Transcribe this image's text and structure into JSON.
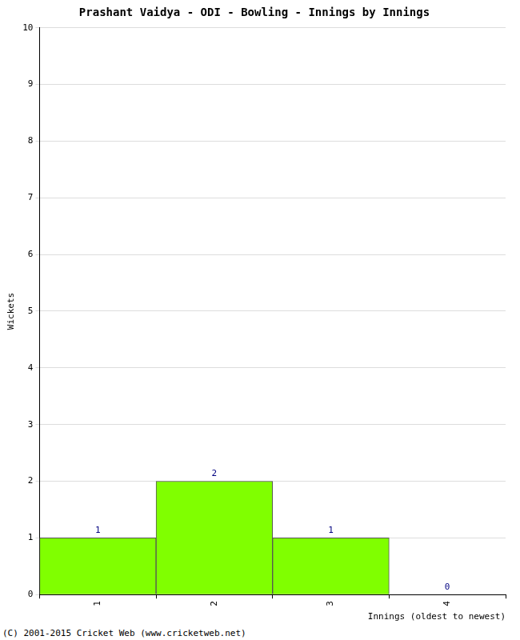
{
  "chart_data": {
    "type": "bar",
    "title": "Prashant Vaidya - ODI - Bowling - Innings by Innings",
    "x_label": "Innings (oldest to newest)",
    "y_label": "Wickets",
    "categories": [
      "1",
      "2",
      "3",
      "4"
    ],
    "values": [
      1,
      2,
      1,
      0
    ],
    "color": "#80ff00",
    "ylim": [
      0,
      10
    ],
    "yticks": [
      0,
      1,
      2,
      3,
      4,
      5,
      6,
      7,
      8,
      9,
      10
    ],
    "grid": true,
    "data_labels": true,
    "annotations": [
      "(C) 2001-2015 Cricket Web (www.cricketweb.net)"
    ]
  }
}
